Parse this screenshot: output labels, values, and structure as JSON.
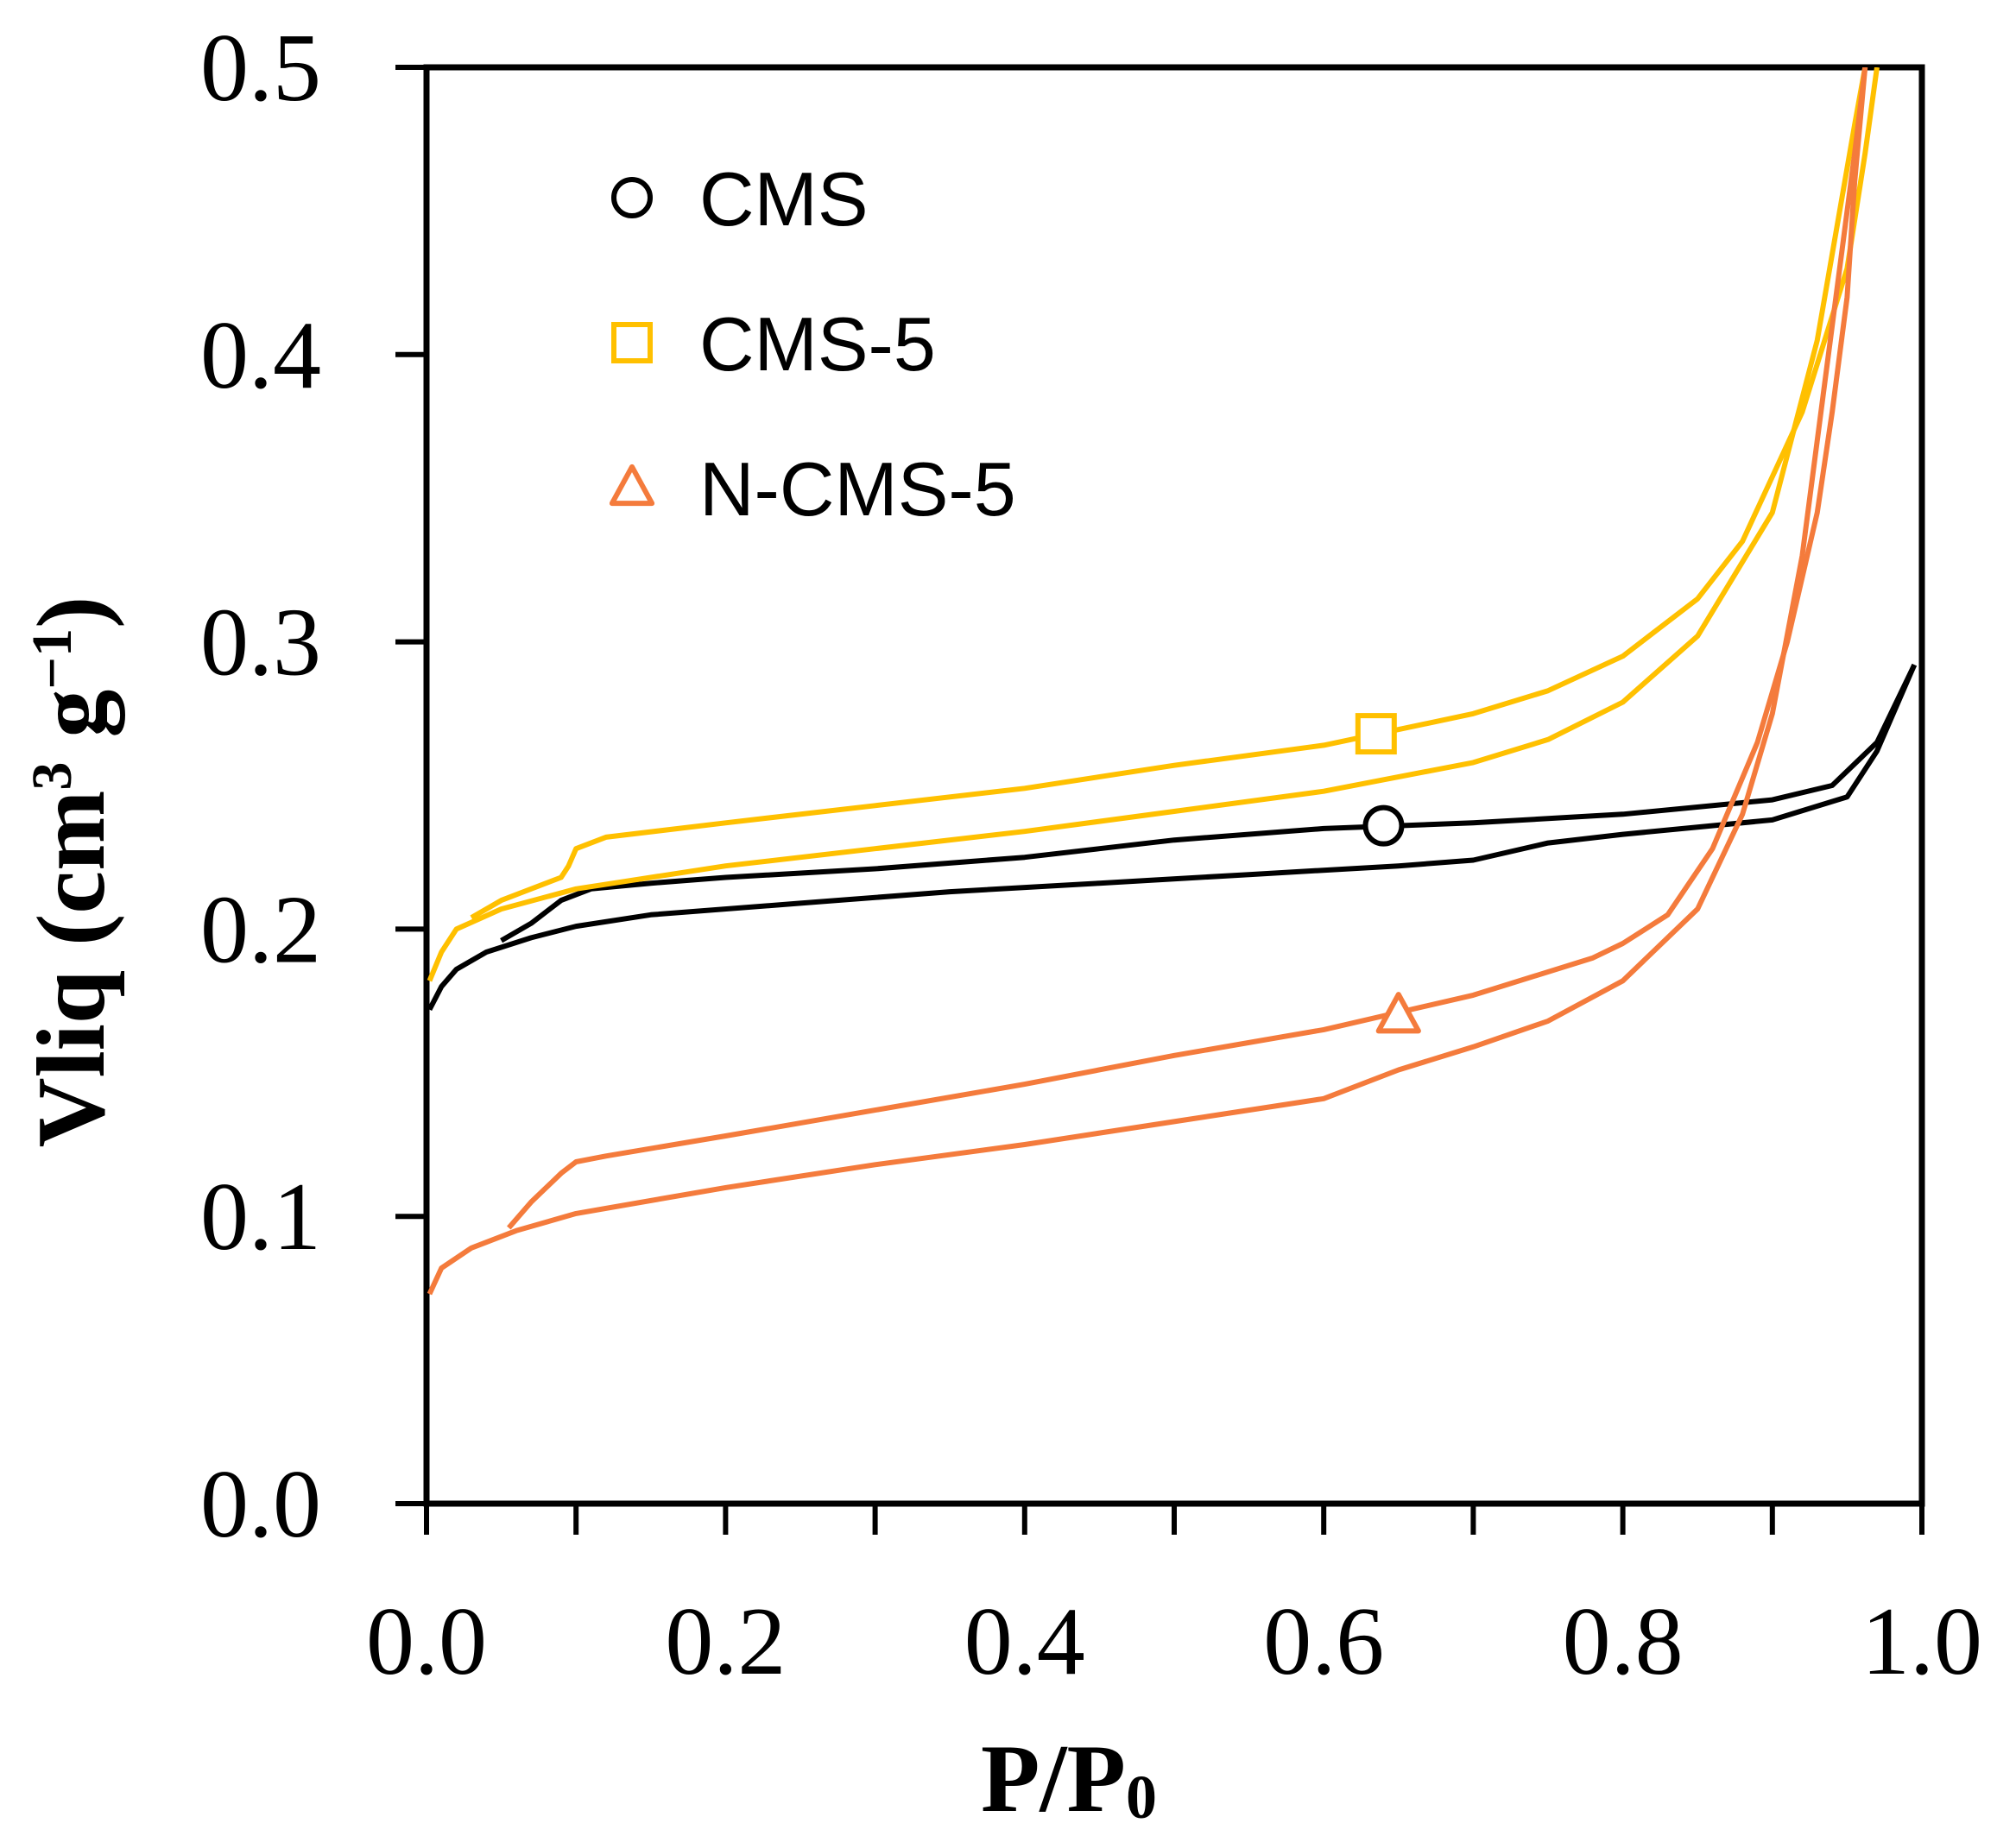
{
  "chart_data": {
    "type": "line",
    "title": "",
    "xlabel_main": "P/P",
    "xlabel_sub": "0",
    "ylabel_main": "Vliq (cm",
    "ylabel_sup1": "3",
    "ylabel_mid": " g",
    "ylabel_sup2": "−1",
    "ylabel_end": ")",
    "xlim": [
      0.0,
      1.0
    ],
    "ylim": [
      0.0,
      0.5
    ],
    "xticks": [
      0.0,
      0.2,
      0.4,
      0.6,
      0.8,
      1.0
    ],
    "xtick_labels": [
      "0.0",
      "0.2",
      "0.4",
      "0.6",
      "0.8",
      "1.0"
    ],
    "xminor": [
      0.1,
      0.3,
      0.5,
      0.7,
      0.9
    ],
    "yticks": [
      0.0,
      0.1,
      0.2,
      0.3,
      0.4,
      0.5
    ],
    "ytick_labels": [
      "0.0",
      "0.1",
      "0.2",
      "0.3",
      "0.4",
      "0.5"
    ],
    "grid": false,
    "legend_position": "top-left",
    "series": [
      {
        "name": "CMS",
        "color": "#000000",
        "marker": "circle",
        "marker_point": [
          0.64,
          0.236
        ],
        "adsorption": [
          [
            0.002,
            0.172
          ],
          [
            0.01,
            0.18
          ],
          [
            0.02,
            0.186
          ],
          [
            0.04,
            0.192
          ],
          [
            0.07,
            0.197
          ],
          [
            0.1,
            0.201
          ],
          [
            0.15,
            0.205
          ],
          [
            0.25,
            0.209
          ],
          [
            0.35,
            0.213
          ],
          [
            0.45,
            0.216
          ],
          [
            0.55,
            0.219
          ],
          [
            0.65,
            0.222
          ],
          [
            0.7,
            0.224
          ],
          [
            0.75,
            0.23
          ],
          [
            0.8,
            0.233
          ],
          [
            0.9,
            0.238
          ],
          [
            0.95,
            0.246
          ],
          [
            0.97,
            0.262
          ],
          [
            0.995,
            0.292
          ]
        ],
        "desorption": [
          [
            0.995,
            0.292
          ],
          [
            0.97,
            0.265
          ],
          [
            0.94,
            0.25
          ],
          [
            0.9,
            0.245
          ],
          [
            0.8,
            0.24
          ],
          [
            0.7,
            0.237
          ],
          [
            0.6,
            0.235
          ],
          [
            0.5,
            0.231
          ],
          [
            0.45,
            0.228
          ],
          [
            0.4,
            0.225
          ],
          [
            0.3,
            0.221
          ],
          [
            0.2,
            0.218
          ],
          [
            0.15,
            0.216
          ],
          [
            0.11,
            0.214
          ],
          [
            0.09,
            0.21
          ],
          [
            0.07,
            0.202
          ],
          [
            0.05,
            0.196
          ]
        ]
      },
      {
        "name": "CMS-5",
        "color": "#FFC000",
        "marker": "square",
        "marker_point": [
          0.635,
          0.268
        ],
        "adsorption": [
          [
            0.002,
            0.182
          ],
          [
            0.01,
            0.192
          ],
          [
            0.02,
            0.2
          ],
          [
            0.05,
            0.207
          ],
          [
            0.1,
            0.214
          ],
          [
            0.2,
            0.222
          ],
          [
            0.3,
            0.228
          ],
          [
            0.4,
            0.234
          ],
          [
            0.5,
            0.241
          ],
          [
            0.6,
            0.248
          ],
          [
            0.7,
            0.258
          ],
          [
            0.75,
            0.266
          ],
          [
            0.8,
            0.279
          ],
          [
            0.85,
            0.302
          ],
          [
            0.9,
            0.345
          ],
          [
            0.93,
            0.405
          ],
          [
            0.955,
            0.48
          ],
          [
            0.962,
            0.5
          ]
        ],
        "desorption": [
          [
            0.97,
            0.5
          ],
          [
            0.962,
            0.47
          ],
          [
            0.95,
            0.43
          ],
          [
            0.92,
            0.38
          ],
          [
            0.88,
            0.335
          ],
          [
            0.85,
            0.315
          ],
          [
            0.8,
            0.295
          ],
          [
            0.75,
            0.283
          ],
          [
            0.7,
            0.275
          ],
          [
            0.6,
            0.264
          ],
          [
            0.5,
            0.257
          ],
          [
            0.4,
            0.249
          ],
          [
            0.3,
            0.243
          ],
          [
            0.2,
            0.237
          ],
          [
            0.12,
            0.232
          ],
          [
            0.1,
            0.228
          ],
          [
            0.095,
            0.222
          ],
          [
            0.09,
            0.218
          ],
          [
            0.05,
            0.21
          ],
          [
            0.03,
            0.204
          ]
        ]
      },
      {
        "name": "N-CMS-5",
        "color": "#F47B3C",
        "marker": "triangle",
        "marker_point": [
          0.65,
          0.17
        ],
        "adsorption": [
          [
            0.002,
            0.073
          ],
          [
            0.01,
            0.082
          ],
          [
            0.03,
            0.089
          ],
          [
            0.06,
            0.095
          ],
          [
            0.1,
            0.101
          ],
          [
            0.2,
            0.11
          ],
          [
            0.3,
            0.118
          ],
          [
            0.4,
            0.125
          ],
          [
            0.5,
            0.133
          ],
          [
            0.6,
            0.141
          ],
          [
            0.65,
            0.151
          ],
          [
            0.7,
            0.159
          ],
          [
            0.75,
            0.168
          ],
          [
            0.8,
            0.182
          ],
          [
            0.85,
            0.207
          ],
          [
            0.88,
            0.24
          ],
          [
            0.9,
            0.275
          ],
          [
            0.92,
            0.33
          ],
          [
            0.94,
            0.41
          ],
          [
            0.955,
            0.47
          ],
          [
            0.962,
            0.5
          ]
        ],
        "desorption": [
          [
            0.962,
            0.5
          ],
          [
            0.955,
            0.46
          ],
          [
            0.95,
            0.42
          ],
          [
            0.94,
            0.38
          ],
          [
            0.93,
            0.345
          ],
          [
            0.91,
            0.3
          ],
          [
            0.89,
            0.265
          ],
          [
            0.86,
            0.228
          ],
          [
            0.83,
            0.205
          ],
          [
            0.8,
            0.195
          ],
          [
            0.78,
            0.19
          ],
          [
            0.7,
            0.177
          ],
          [
            0.6,
            0.165
          ],
          [
            0.5,
            0.156
          ],
          [
            0.4,
            0.146
          ],
          [
            0.3,
            0.137
          ],
          [
            0.2,
            0.128
          ],
          [
            0.12,
            0.121
          ],
          [
            0.1,
            0.119
          ],
          [
            0.09,
            0.115
          ],
          [
            0.07,
            0.105
          ],
          [
            0.055,
            0.096
          ]
        ]
      }
    ]
  }
}
